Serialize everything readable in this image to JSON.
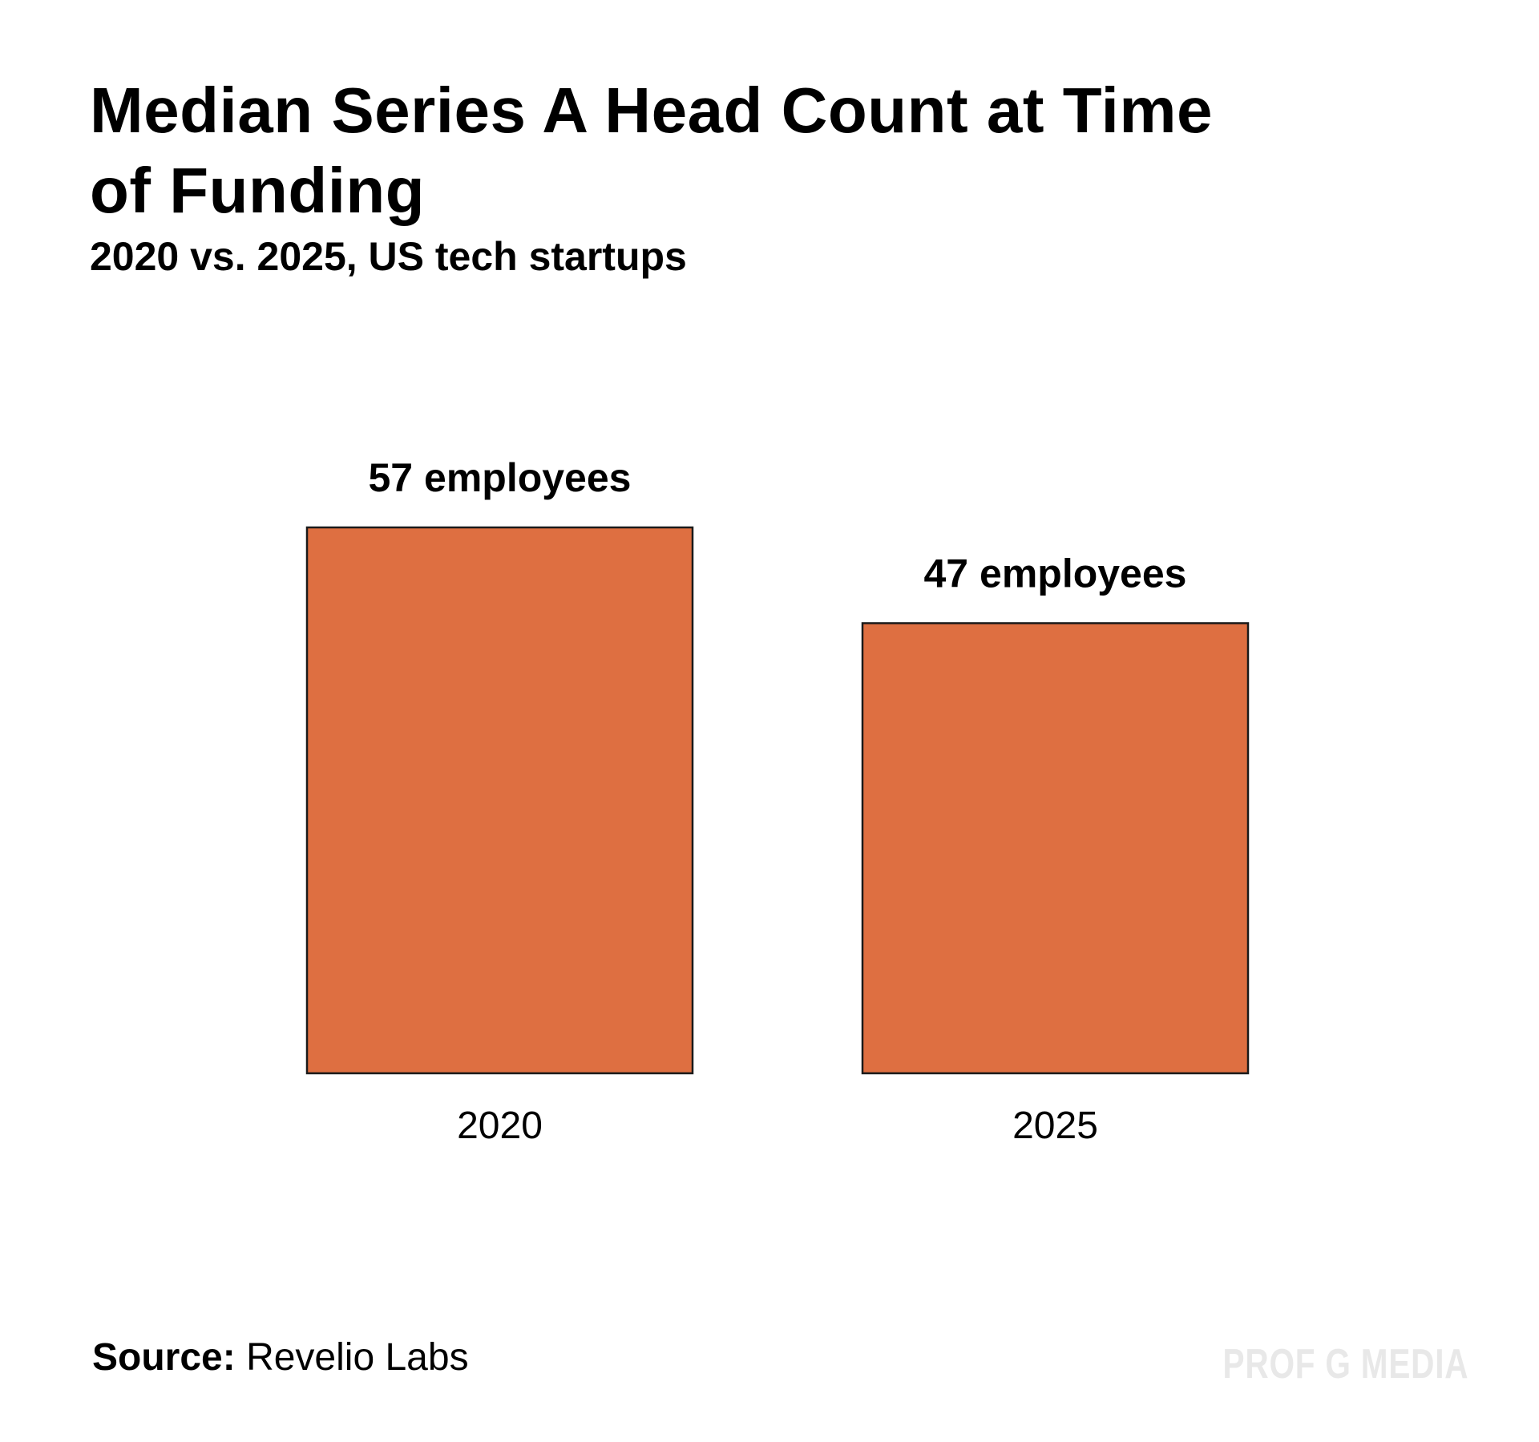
{
  "chart_data": {
    "type": "bar",
    "title": "Median Series A Head Count at Time of Funding",
    "subtitle": "2020 vs. 2025, US tech startups",
    "categories": [
      "2020",
      "2025"
    ],
    "values": [
      57,
      47
    ],
    "data_labels": [
      "57 employees",
      "47 employees"
    ],
    "xlabel": "",
    "ylabel": "",
    "ylim": [
      0,
      57
    ],
    "grid": false,
    "legend": "none",
    "bar_color": "#de6f41",
    "bar_edge_color": "#1a1a1a"
  },
  "source": {
    "label": "Source:",
    "value": "Revelio Labs"
  },
  "brand": {
    "text": "PROF G MEDIA",
    "color": "#e8e8e8"
  }
}
